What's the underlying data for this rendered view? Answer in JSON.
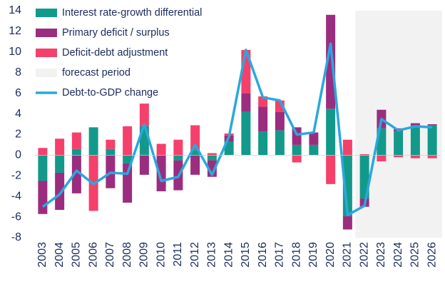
{
  "chart_data": {
    "type": "bar",
    "categories": [
      "2003",
      "2004",
      "2005",
      "2006",
      "2007",
      "2008",
      "2009",
      "2010",
      "2011",
      "2012",
      "2013",
      "2014",
      "2015",
      "2016",
      "2017",
      "2018",
      "2019",
      "2020",
      "2021",
      "2022",
      "2023",
      "2024",
      "2025",
      "2026"
    ],
    "series": [
      {
        "name": "Interest rate-growth differential",
        "color": "#13998a",
        "type": "bar",
        "values": [
          -2.5,
          -1.7,
          0.6,
          2.7,
          0.6,
          -0.8,
          2.8,
          0,
          -0.5,
          0.5,
          -0.5,
          1.3,
          4.2,
          2.3,
          2.4,
          1.0,
          1.0,
          4.5,
          -5.9,
          -4.2,
          2.6,
          2.3,
          2.9,
          2.9
        ]
      },
      {
        "name": "Primary deficit / surplus",
        "color": "#9b2d7f",
        "type": "bar",
        "values": [
          -3.2,
          -3.6,
          -3.7,
          0,
          -3.2,
          -3.8,
          -1.9,
          -3.5,
          -2.9,
          -1.9,
          -1.6,
          0.6,
          1.8,
          2.4,
          1.8,
          1.7,
          1.2,
          9.1,
          -1.3,
          -0.8,
          1.8,
          0.3,
          0.2,
          0.1
        ]
      },
      {
        "name": "Deficit-debt adjustment",
        "color": "#f5406b",
        "type": "bar",
        "values": [
          0.7,
          1.6,
          1.6,
          -5.4,
          0.9,
          2.8,
          2.2,
          1.1,
          1.5,
          2.4,
          0.2,
          0.2,
          4.2,
          1.0,
          1.1,
          -0.7,
          0,
          -2.8,
          1.5,
          0.1,
          -0.6,
          -0.2,
          -0.3,
          -0.3
        ]
      },
      {
        "name": "Debt-to-GDP change",
        "color": "#2aa8dc",
        "type": "line",
        "values": [
          -5.0,
          -3.8,
          -1.5,
          -2.8,
          -1.7,
          -1.8,
          3.0,
          -2.5,
          -2.1,
          1.0,
          -1.9,
          1.8,
          10.2,
          5.6,
          5.3,
          2.0,
          2.2,
          10.8,
          -5.8,
          -4.9,
          3.5,
          2.4,
          2.8,
          2.7
        ]
      }
    ],
    "forecast": {
      "label": "forecast period",
      "from": "2022",
      "color": "#f2f2f2"
    },
    "ylim": [
      -8,
      14
    ],
    "yticks": [
      -8,
      -6,
      -4,
      -2,
      0,
      2,
      4,
      6,
      8,
      10,
      12,
      14
    ]
  }
}
